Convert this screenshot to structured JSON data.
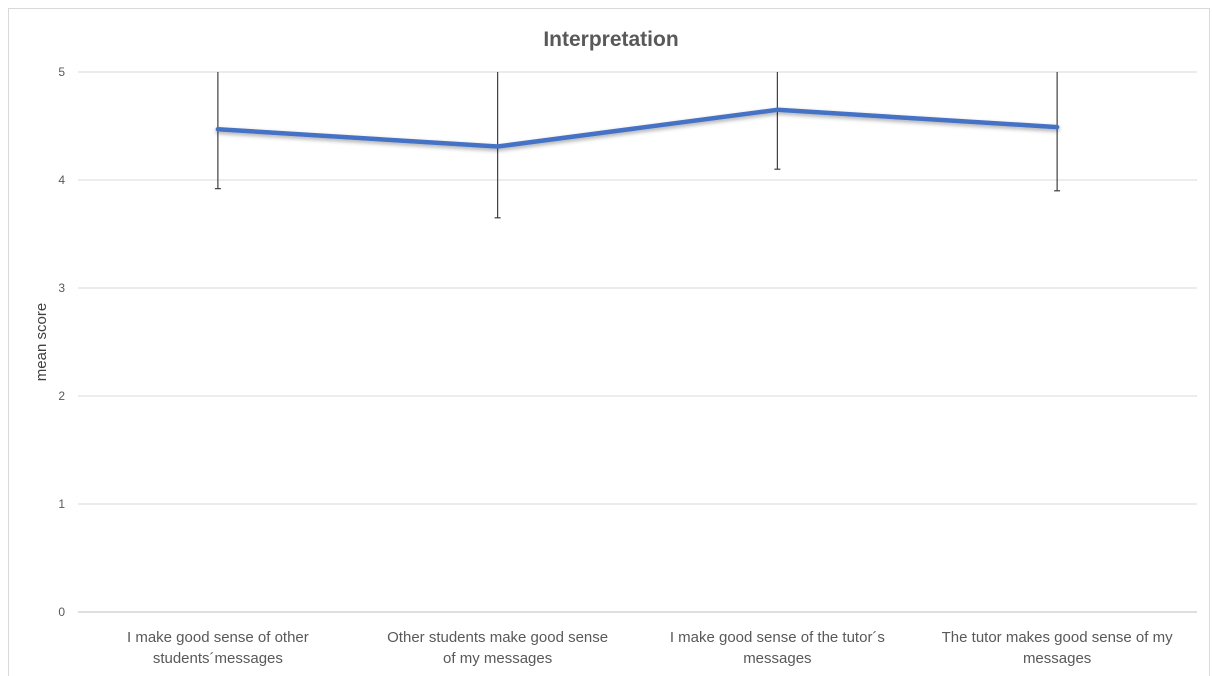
{
  "chart_data": {
    "type": "line",
    "title": "Interpretation",
    "xlabel": "",
    "ylabel": "mean score",
    "ylim": [
      0,
      5
    ],
    "yticks": [
      "0",
      "1",
      "2",
      "3",
      "4",
      "5"
    ],
    "categories": [
      [
        "I make good sense of other",
        "students´messages"
      ],
      [
        "Other students make good sense",
        "of my messages"
      ],
      [
        "I make good sense of the tutor´s",
        "messages"
      ],
      [
        "The tutor makes good sense of my",
        "messages"
      ]
    ],
    "series": [
      {
        "values": [
          4.47,
          4.31,
          4.65,
          4.49
        ],
        "error_low": [
          3.92,
          3.65,
          4.1,
          3.9
        ],
        "error_high": [
          5.0,
          5.0,
          5.0,
          5.0
        ]
      }
    ],
    "grid": true,
    "legend": "none",
    "colors": {
      "line": "#4472C4",
      "grid": "#d9d9d9",
      "errorbar": "#404040"
    }
  }
}
